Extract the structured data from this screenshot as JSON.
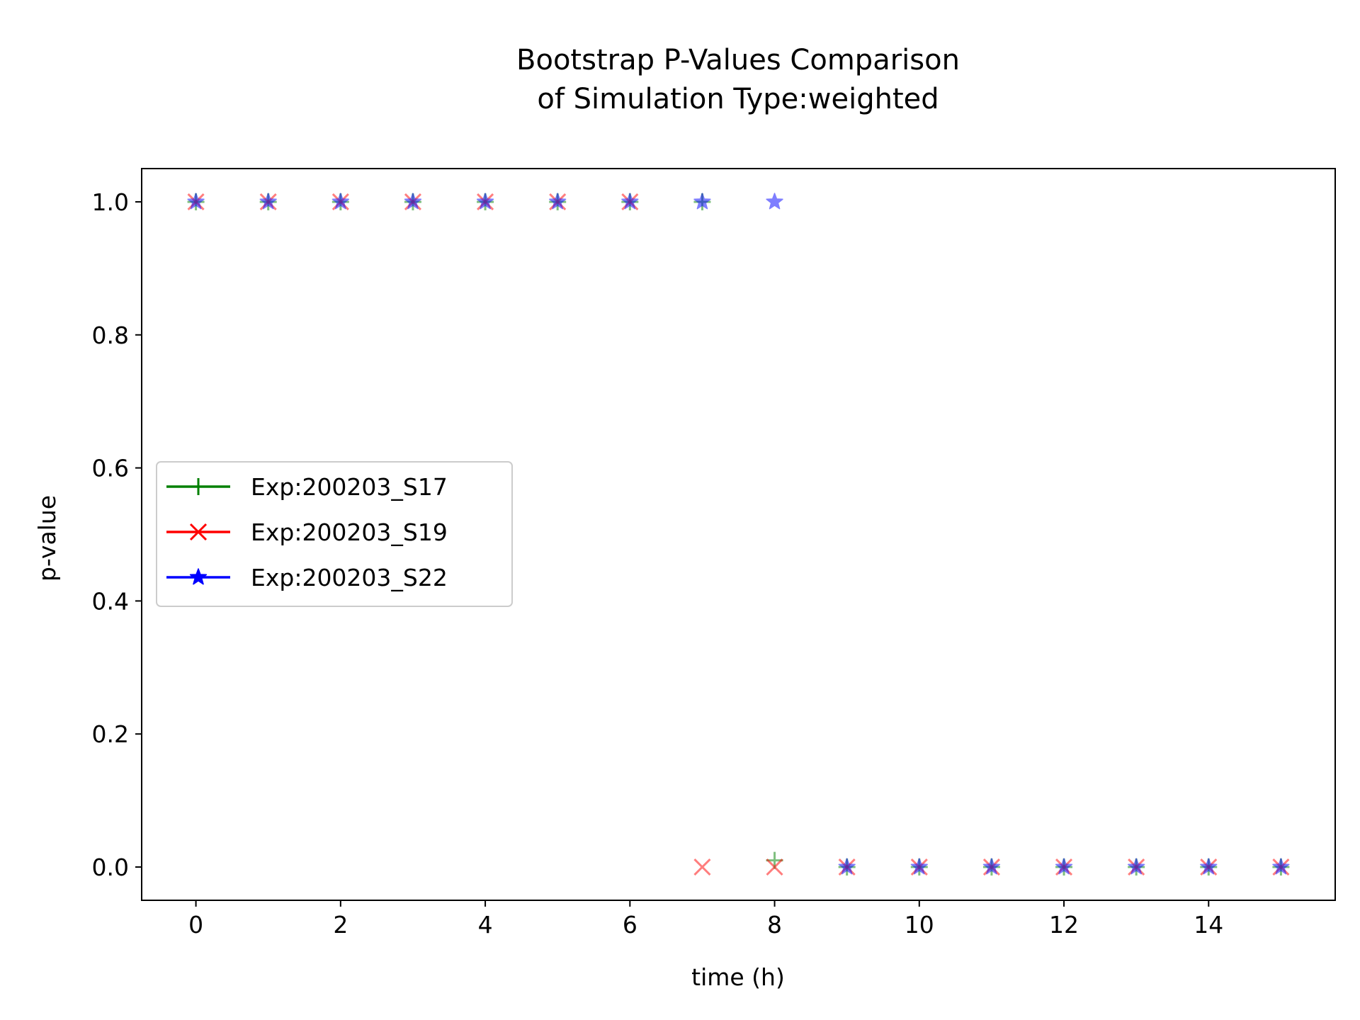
{
  "chart_data": {
    "type": "scatter",
    "title_lines": [
      "Bootstrap P-Values Comparison",
      "of Simulation Type:weighted"
    ],
    "xlabel": "time (h)",
    "ylabel": "p-value",
    "xlim": [
      -0.75,
      15.75
    ],
    "ylim": [
      -0.05,
      1.05
    ],
    "xticks": [
      0,
      2,
      4,
      6,
      8,
      10,
      12,
      14
    ],
    "yticks": [
      0.0,
      0.2,
      0.4,
      0.6,
      0.8,
      1.0
    ],
    "xtick_labels": [
      "0",
      "2",
      "4",
      "6",
      "8",
      "10",
      "12",
      "14"
    ],
    "ytick_labels": [
      "0.0",
      "0.2",
      "0.4",
      "0.6",
      "0.8",
      "1.0"
    ],
    "grid": false,
    "legend_position": "center-left",
    "series": [
      {
        "name": "Exp:200203_S17",
        "color": "#008000",
        "marker": "plus",
        "x": [
          0,
          1,
          2,
          3,
          4,
          5,
          6,
          7,
          8,
          9,
          10,
          11,
          12,
          13,
          14,
          15
        ],
        "y": [
          1.0,
          1.0,
          1.0,
          1.0,
          1.0,
          1.0,
          1.0,
          1.0,
          0.01,
          0.0,
          0.0,
          0.0,
          0.0,
          0.0,
          0.0,
          0.0
        ]
      },
      {
        "name": "Exp:200203_S19",
        "color": "#ff0000",
        "marker": "x",
        "x": [
          0,
          1,
          2,
          3,
          4,
          5,
          6,
          7,
          8,
          9,
          10,
          11,
          12,
          13,
          14,
          15
        ],
        "y": [
          1.0,
          1.0,
          1.0,
          1.0,
          1.0,
          1.0,
          1.0,
          0.0,
          0.0,
          0.0,
          0.0,
          0.0,
          0.0,
          0.0,
          0.0,
          0.0
        ]
      },
      {
        "name": "Exp:200203_S22",
        "color": "#0000ff",
        "marker": "star",
        "x": [
          0,
          1,
          2,
          3,
          4,
          5,
          6,
          7,
          8,
          9,
          10,
          11,
          12,
          13,
          14,
          15
        ],
        "y": [
          1.0,
          1.0,
          1.0,
          1.0,
          1.0,
          1.0,
          1.0,
          1.0,
          1.0,
          0.0,
          0.0,
          0.0,
          0.0,
          0.0,
          0.0,
          0.0
        ]
      }
    ]
  }
}
